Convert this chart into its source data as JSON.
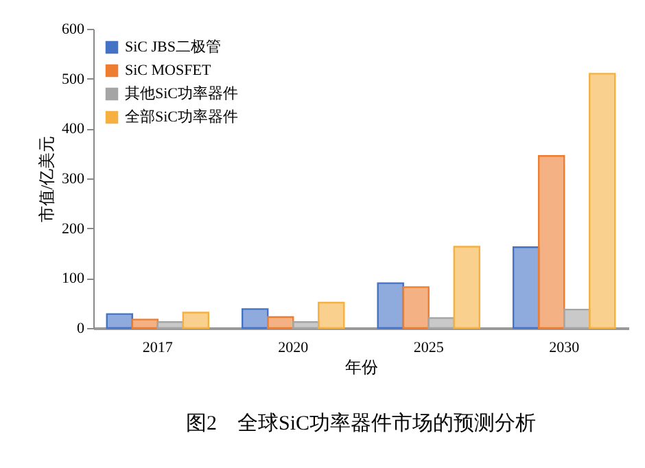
{
  "chart_data": {
    "type": "bar",
    "title": "图2　全球SiC功率器件市场的预测分析",
    "xlabel": "年份",
    "ylabel": "市值/亿美元",
    "categories": [
      "2017",
      "2020",
      "2025",
      "2030"
    ],
    "series": [
      {
        "name": "SiC JBS二极管",
        "color": "#4472c4",
        "values": [
          28,
          38,
          90,
          162
        ]
      },
      {
        "name": "SiC MOSFET",
        "color": "#ed7d31",
        "values": [
          17,
          22,
          82,
          345
        ]
      },
      {
        "name": "其他SiC功率器件",
        "color": "#a5a5a5",
        "values": [
          12,
          12,
          20,
          37
        ]
      },
      {
        "name": "全部SiC功率器件",
        "color": "#f5b041",
        "values": [
          31,
          51,
          163,
          510
        ]
      }
    ],
    "ylim": [
      0,
      600
    ],
    "yticks": [
      0,
      100,
      200,
      300,
      400,
      500,
      600
    ],
    "grid": false,
    "legend": "top left"
  }
}
